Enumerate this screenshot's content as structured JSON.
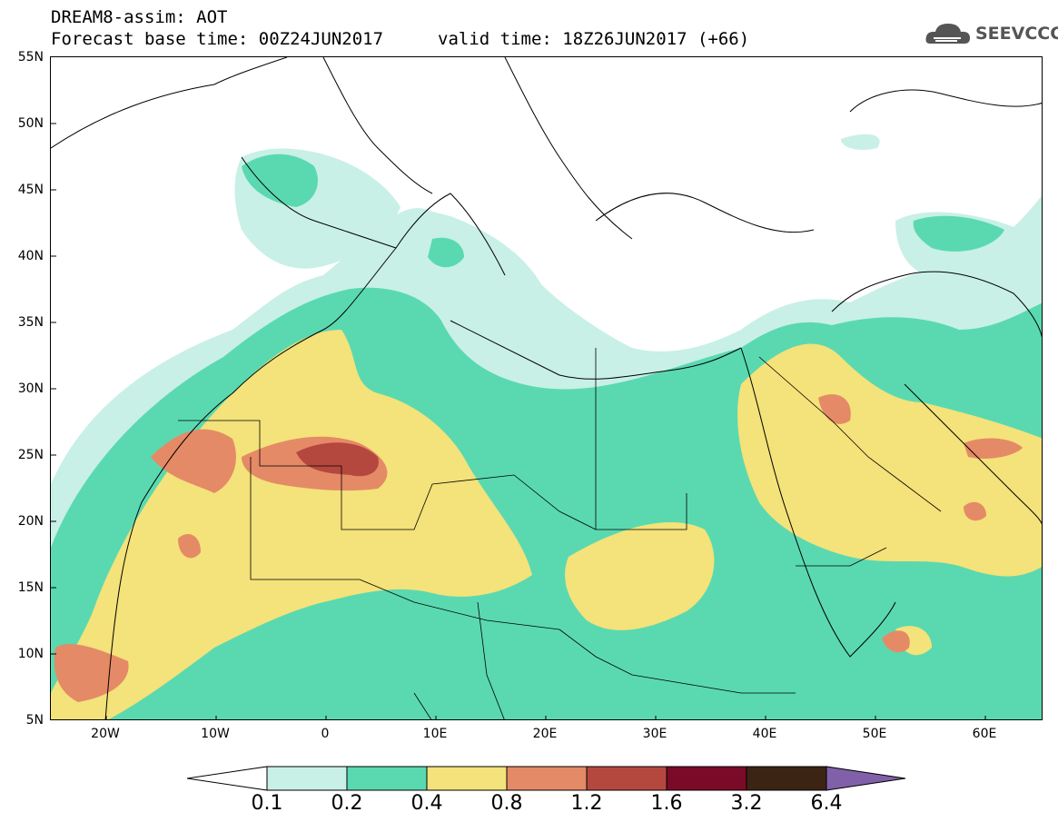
{
  "header": {
    "product": "DREAM8-assim: AOT",
    "base_time": "Forecast base time: 00Z24JUN2017",
    "valid_time": "valid time: 18Z26JUN2017 (+66)"
  },
  "logo": {
    "text": "SEEVCCC",
    "icon": "cloud-logo-icon"
  },
  "map": {
    "lat_labels": [
      "55N",
      "50N",
      "45N",
      "40N",
      "35N",
      "30N",
      "25N",
      "20N",
      "15N",
      "10N",
      "5N"
    ],
    "lon_labels": [
      "20W",
      "10W",
      "0",
      "10E",
      "20E",
      "30E",
      "40E",
      "50E",
      "60E"
    ],
    "lat_range": [
      5,
      55
    ],
    "lon_range": [
      -25,
      65
    ]
  },
  "legend": {
    "labels": [
      "0.1",
      "0.2",
      "0.4",
      "0.8",
      "1.2",
      "1.6",
      "3.2",
      "6.4"
    ],
    "colors": [
      "#ffffff",
      "#c8f0e6",
      "#5ad9b0",
      "#f4e27a",
      "#e58a66",
      "#b5483e",
      "#7a0a28",
      "#3c2414",
      "#8060a8"
    ]
  }
}
